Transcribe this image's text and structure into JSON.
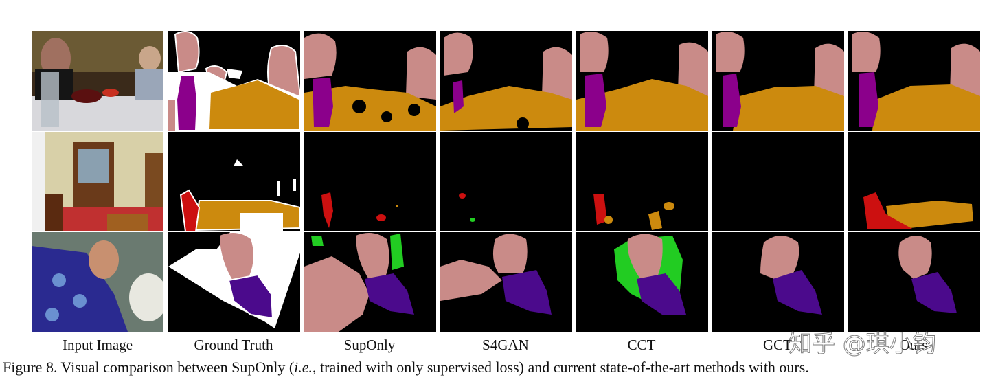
{
  "columns": [
    "Input Image",
    "Ground Truth",
    "SupOnly",
    "S4GAN",
    "CCT",
    "GCT",
    "Ours"
  ],
  "caption": {
    "prefix": "Figure 8. Visual comparison between SupOnly (",
    "italic": "i.e.",
    "suffix": ", trained with only supervised loss) and current state-of-the-art methods with ours."
  },
  "watermark": "知乎 @琪小钧"
}
